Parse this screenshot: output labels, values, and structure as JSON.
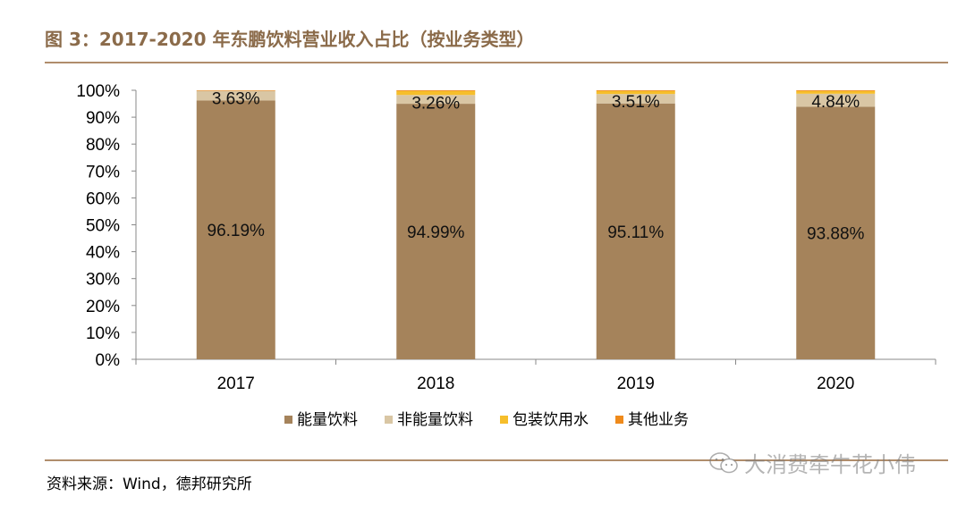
{
  "header": {
    "title": "图 3：2017-2020 年东鹏饮料营业收入占比（按业务类型）"
  },
  "footer": {
    "source": "资料来源：Wind，德邦研究所"
  },
  "watermark": {
    "text": "大消费牵牛花小伟",
    "icon": "wechat-icon"
  },
  "chart_data": {
    "type": "bar",
    "stacked": true,
    "title": "",
    "xlabel": "",
    "ylabel": "",
    "ylim": [
      0,
      1
    ],
    "y_ticks": [
      "0%",
      "10%",
      "20%",
      "30%",
      "40%",
      "50%",
      "60%",
      "70%",
      "80%",
      "90%",
      "100%"
    ],
    "categories": [
      "2017",
      "2018",
      "2019",
      "2020"
    ],
    "series": [
      {
        "name": "能量饮料",
        "color": "#a5835b",
        "values": [
          0.9619,
          0.9499,
          0.9511,
          0.9388
        ],
        "labels": [
          "96.19%",
          "94.99%",
          "95.11%",
          "93.88%"
        ]
      },
      {
        "name": "非能量饮料",
        "color": "#d9c6a4",
        "values": [
          0.0363,
          0.0326,
          0.0351,
          0.0484
        ],
        "labels": [
          "3.63%",
          "3.26%",
          "3.51%",
          "4.84%"
        ]
      },
      {
        "name": "包装饮用水",
        "color": "#f6be2b",
        "values": [
          0.0,
          0.0145,
          0.0108,
          0.0098
        ]
      },
      {
        "name": "其他业务",
        "color": "#ef8a1b",
        "values": [
          0.0018,
          0.003,
          0.003,
          0.003
        ]
      }
    ],
    "legend_position": "bottom",
    "grid": false
  }
}
